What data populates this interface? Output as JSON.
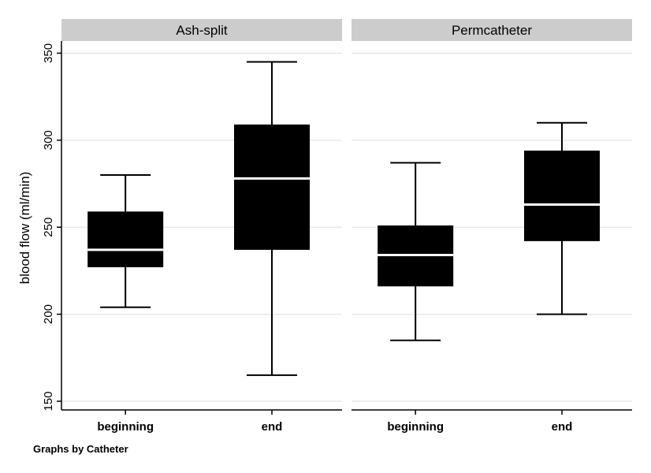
{
  "chart_data": {
    "type": "box",
    "ylabel": "blood flow (ml/min)",
    "yticks": [
      150,
      200,
      250,
      300,
      350
    ],
    "ylim": [
      145,
      357
    ],
    "grid": true,
    "note": "Graphs by Catheter",
    "categories": [
      "beginning",
      "end"
    ],
    "panels": [
      {
        "title": "Ash-split",
        "boxes": [
          {
            "category": "beginning",
            "min": 204,
            "q1": 227,
            "median": 237,
            "q3": 259,
            "max": 280
          },
          {
            "category": "end",
            "min": 165,
            "q1": 237,
            "median": 278,
            "q3": 309,
            "max": 345
          }
        ]
      },
      {
        "title": "Permcatheter",
        "boxes": [
          {
            "category": "beginning",
            "min": 185,
            "q1": 216,
            "median": 234,
            "q3": 251,
            "max": 287
          },
          {
            "category": "end",
            "min": 200,
            "q1": 242,
            "median": 263,
            "q3": 294,
            "max": 310
          }
        ]
      }
    ],
    "colors": {
      "box": "#000000",
      "median": "#ffffff",
      "strip": "#cccccc",
      "grid": "#dddddd"
    }
  }
}
